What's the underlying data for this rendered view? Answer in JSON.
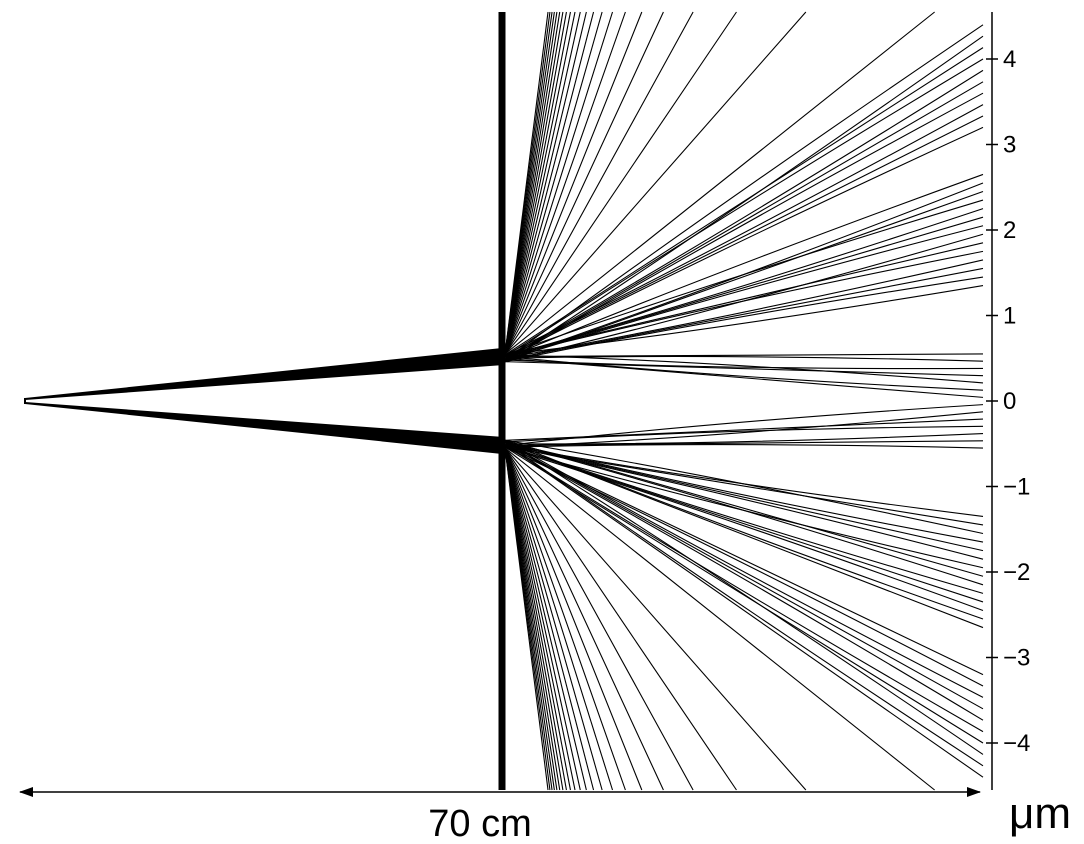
{
  "diagram": {
    "distance_label": "70 cm",
    "unit_label": "μm",
    "y_axis": {
      "range": [
        -4.5,
        4.5
      ],
      "ticks": [
        4,
        3,
        2,
        1,
        0,
        -1,
        -2,
        -3,
        -4
      ],
      "tick_labels": [
        "4",
        "3",
        "2",
        "1",
        "0",
        "−1",
        "−2",
        "−3",
        "−4"
      ]
    },
    "slits": {
      "count": 2,
      "centers": [
        0.5,
        -0.5
      ]
    },
    "colors": {
      "ink": "#000000",
      "background": "#ffffff"
    }
  }
}
